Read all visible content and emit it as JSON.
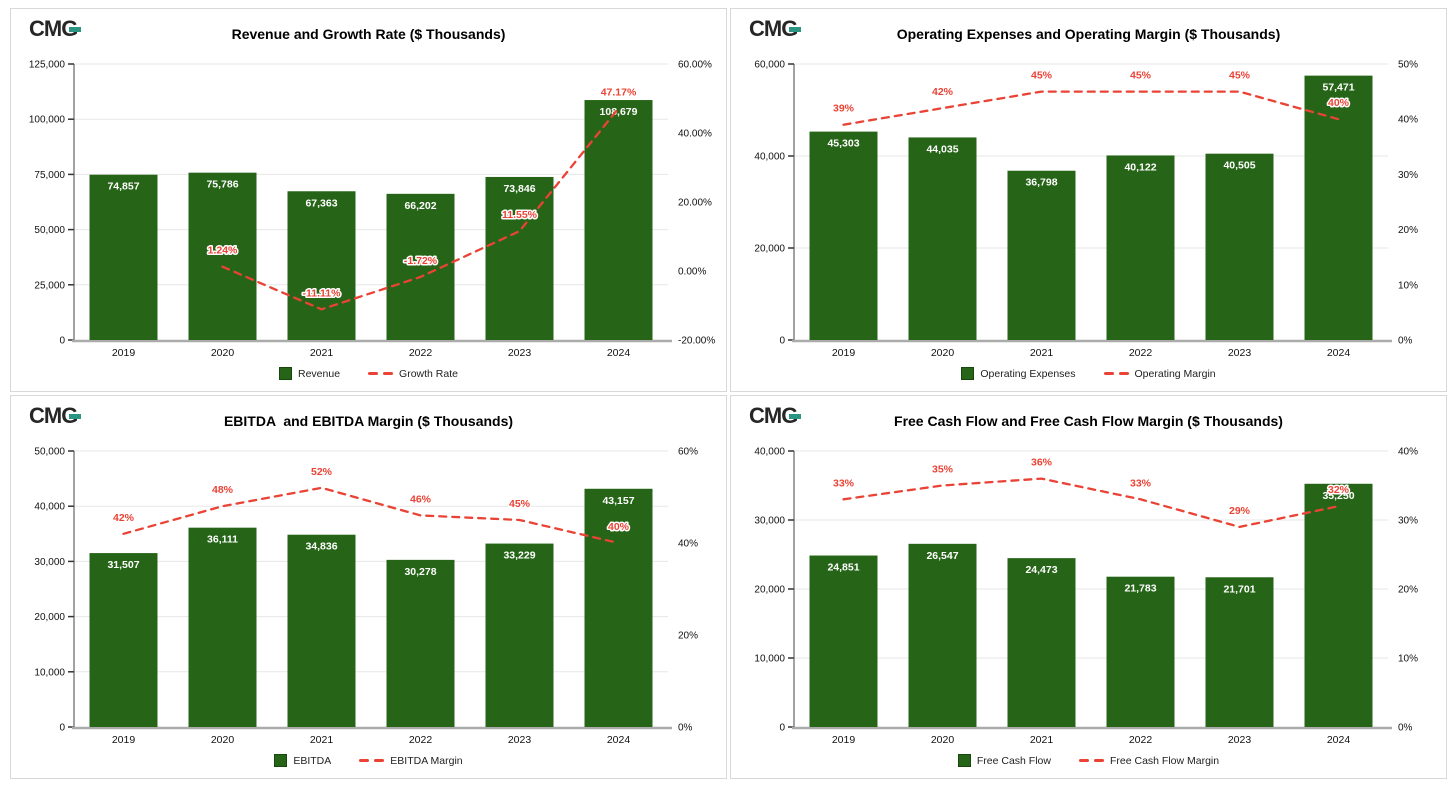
{
  "brand": {
    "logo_text": "CMG",
    "logo_color": "#262626",
    "logo_accent": "#2b9482"
  },
  "colors": {
    "bar_green": "#266517",
    "line_red": "#ea4335",
    "grid": "#e7e7e7",
    "axis_left": "#444444",
    "axis_bottom": "#ababab",
    "tick_text": "#111111",
    "bar_label_text": "#ffffff",
    "panel_border": "#d8d8d8"
  },
  "chart_data": [
    {
      "type": "combo",
      "title": "Revenue and Growth Rate ($ Thousands)",
      "categories": [
        "2019",
        "2020",
        "2021",
        "2022",
        "2023",
        "2024"
      ],
      "series": [
        {
          "name": "Revenue",
          "type": "bar",
          "axis": "left",
          "values": [
            74857,
            75786,
            67363,
            66202,
            73846,
            108679
          ],
          "labels": [
            "74,857",
            "75,786",
            "67,363",
            "66,202",
            "73,846",
            "108,679"
          ]
        },
        {
          "name": "Growth Rate",
          "type": "line",
          "axis": "right",
          "values": [
            null,
            1.24,
            -11.11,
            -1.72,
            11.55,
            47.17
          ],
          "labels": [
            null,
            "1.24%",
            "-11.11%",
            "-1.72%",
            "11.55%",
            "47.17%"
          ]
        }
      ],
      "left_axis": {
        "min": 0,
        "max": 125000,
        "ticks": [
          0,
          25000,
          50000,
          75000,
          100000,
          125000
        ],
        "tick_labels": [
          "0",
          "25,000",
          "50,000",
          "75,000",
          "100,000",
          "125,000"
        ]
      },
      "right_axis": {
        "min": -20,
        "max": 60,
        "ticks": [
          -20,
          0,
          20,
          40,
          60
        ],
        "tick_labels": [
          "-20.00%",
          "0.00%",
          "20.00%",
          "40.00%",
          "60.00%"
        ]
      },
      "legend_position": "bottom",
      "grid": true
    },
    {
      "type": "combo",
      "title": "Operating Expenses and Operating Margin ($ Thousands)",
      "categories": [
        "2019",
        "2020",
        "2021",
        "2022",
        "2023",
        "2024"
      ],
      "series": [
        {
          "name": "Operating Expenses",
          "type": "bar",
          "axis": "left",
          "values": [
            45303,
            44035,
            36798,
            40122,
            40505,
            57471
          ],
          "labels": [
            "45,303",
            "44,035",
            "36,798",
            "40,122",
            "40,505",
            "57,471"
          ]
        },
        {
          "name": "Operating Margin",
          "type": "line",
          "axis": "right",
          "values": [
            39,
            42,
            45,
            45,
            45,
            40
          ],
          "labels": [
            "39%",
            "42%",
            "45%",
            "45%",
            "45%",
            "40%"
          ]
        }
      ],
      "left_axis": {
        "min": 0,
        "max": 60000,
        "ticks": [
          0,
          20000,
          40000,
          60000
        ],
        "tick_labels": [
          "0",
          "20,000",
          "40,000",
          "60,000"
        ]
      },
      "right_axis": {
        "min": 0,
        "max": 50,
        "ticks": [
          0,
          10,
          20,
          30,
          40,
          50
        ],
        "tick_labels": [
          "0%",
          "10%",
          "20%",
          "30%",
          "40%",
          "50%"
        ]
      },
      "legend_position": "bottom",
      "grid": true
    },
    {
      "type": "combo",
      "title": "EBITDA  and EBITDA Margin ($ Thousands)",
      "categories": [
        "2019",
        "2020",
        "2021",
        "2022",
        "2023",
        "2024"
      ],
      "series": [
        {
          "name": "EBITDA",
          "type": "bar",
          "axis": "left",
          "values": [
            31507,
            36111,
            34836,
            30278,
            33229,
            43157
          ],
          "labels": [
            "31,507",
            "36,111",
            "34,836",
            "30,278",
            "33,229",
            "43,157"
          ]
        },
        {
          "name": "EBITDA Margin",
          "type": "line",
          "axis": "right",
          "values": [
            42,
            48,
            52,
            46,
            45,
            40
          ],
          "labels": [
            "42%",
            "48%",
            "52%",
            "46%",
            "45%",
            "40%"
          ]
        }
      ],
      "left_axis": {
        "min": 0,
        "max": 50000,
        "ticks": [
          0,
          10000,
          20000,
          30000,
          40000,
          50000
        ],
        "tick_labels": [
          "0",
          "10,000",
          "20,000",
          "30,000",
          "40,000",
          "50,000"
        ]
      },
      "right_axis": {
        "min": 0,
        "max": 60,
        "ticks": [
          0,
          20,
          40,
          60
        ],
        "tick_labels": [
          "0%",
          "20%",
          "40%",
          "60%"
        ]
      },
      "legend_position": "bottom",
      "grid": true
    },
    {
      "type": "combo",
      "title": "Free Cash Flow and Free Cash Flow Margin ($ Thousands)",
      "categories": [
        "2019",
        "2020",
        "2021",
        "2022",
        "2023",
        "2024"
      ],
      "series": [
        {
          "name": "Free Cash Flow",
          "type": "bar",
          "axis": "left",
          "values": [
            24851,
            26547,
            24473,
            21783,
            21701,
            35250
          ],
          "labels": [
            "24,851",
            "26,547",
            "24,473",
            "21,783",
            "21,701",
            "35,250"
          ]
        },
        {
          "name": "Free Cash Flow Margin",
          "type": "line",
          "axis": "right",
          "values": [
            33,
            35,
            36,
            33,
            29,
            32
          ],
          "labels": [
            "33%",
            "35%",
            "36%",
            "33%",
            "29%",
            "32%"
          ]
        }
      ],
      "left_axis": {
        "min": 0,
        "max": 40000,
        "ticks": [
          0,
          10000,
          20000,
          30000,
          40000
        ],
        "tick_labels": [
          "0",
          "10,000",
          "20,000",
          "30,000",
          "40,000"
        ]
      },
      "right_axis": {
        "min": 0,
        "max": 40,
        "ticks": [
          0,
          10,
          20,
          30,
          40
        ],
        "tick_labels": [
          "0%",
          "10%",
          "20%",
          "30%",
          "40%"
        ]
      },
      "legend_position": "bottom",
      "grid": true
    }
  ]
}
